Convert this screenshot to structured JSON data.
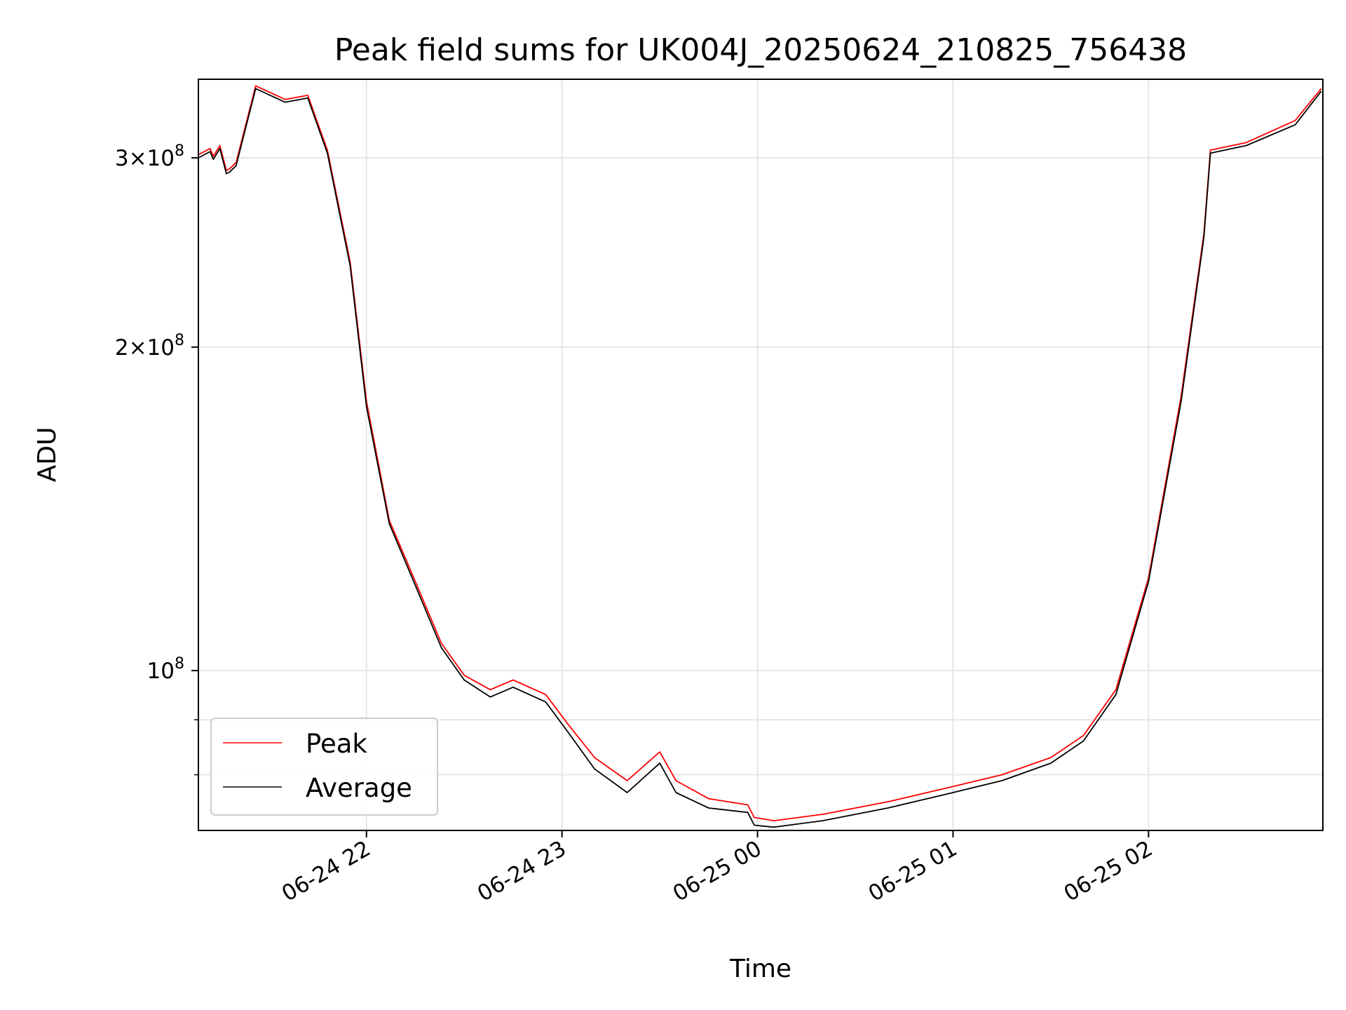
{
  "chart_data": {
    "type": "line",
    "title": "Peak field sums for UK004J_20250624_210825_756438",
    "xlabel": "Time",
    "ylabel": "ADU",
    "yscale": "log",
    "xlim": [
      "2025-06-24 21:08:25",
      "2025-06-25 02:53:30"
    ],
    "ylim": [
      71000000,
      355000000
    ],
    "grid": true,
    "legend_position": "lower-left",
    "x_tick_labels": [
      {
        "value": "2025-06-24 22:00",
        "label": "06-24 22"
      },
      {
        "value": "2025-06-24 23:00",
        "label": "06-24 23"
      },
      {
        "value": "2025-06-25 00:00",
        "label": "06-25 00"
      },
      {
        "value": "2025-06-25 01:00",
        "label": "06-25 01"
      },
      {
        "value": "2025-06-25 02:00",
        "label": "06-25 02"
      }
    ],
    "y_tick_labels": [
      {
        "value": 100000000,
        "mantissa": "",
        "exponent": "8"
      },
      {
        "value": 200000000,
        "mantissa": "2",
        "exponent": "8"
      },
      {
        "value": 300000000,
        "mantissa": "3",
        "exponent": "8"
      }
    ],
    "y_minor_ticks": [
      80000000,
      90000000
    ],
    "x": [
      "2025-06-24 21:08:25",
      "2025-06-24 21:12:00",
      "2025-06-24 21:13:00",
      "2025-06-24 21:15:00",
      "2025-06-24 21:17:00",
      "2025-06-24 21:18:00",
      "2025-06-24 21:20:00",
      "2025-06-24 21:26:00",
      "2025-06-24 21:35:00",
      "2025-06-24 21:42:00",
      "2025-06-24 21:48:00",
      "2025-06-24 21:55:00",
      "2025-06-24 22:00:00",
      "2025-06-24 22:07:00",
      "2025-06-24 22:15:00",
      "2025-06-24 22:23:00",
      "2025-06-24 22:30:00",
      "2025-06-24 22:38:00",
      "2025-06-24 22:45:00",
      "2025-06-24 22:55:00",
      "2025-06-24 23:02:00",
      "2025-06-24 23:10:00",
      "2025-06-24 23:20:00",
      "2025-06-24 23:30:00",
      "2025-06-24 23:35:00",
      "2025-06-24 23:45:00",
      "2025-06-24 23:57:00",
      "2025-06-24 23:59:00",
      "2025-06-25 00:05:00",
      "2025-06-25 00:20:00",
      "2025-06-25 00:40:00",
      "2025-06-25 01:00:00",
      "2025-06-25 01:15:00",
      "2025-06-25 01:30:00",
      "2025-06-25 01:40:00",
      "2025-06-25 01:50:00",
      "2025-06-25 02:00:00",
      "2025-06-25 02:10:00",
      "2025-06-25 02:17:00",
      "2025-06-25 02:19:00",
      "2025-06-25 02:30:00",
      "2025-06-25 02:45:00",
      "2025-06-25 02:53:00"
    ],
    "series": [
      {
        "name": "Peak",
        "color": "#ff0000",
        "values": [
          302000000,
          306000000,
          301000000,
          308000000,
          292000000,
          293000000,
          297000000,
          350000000,
          340000000,
          343000000,
          305000000,
          240000000,
          178000000,
          138000000,
          121000000,
          106000000,
          99000000,
          96000000,
          98000000,
          95000000,
          89000000,
          83000000,
          79000000,
          84000000,
          79000000,
          76000000,
          75000000,
          73000000,
          72500000,
          73500000,
          75500000,
          78000000,
          80000000,
          83000000,
          87000000,
          96000000,
          122000000,
          180000000,
          255000000,
          305000000,
          310000000,
          325000000,
          348000000
        ]
      },
      {
        "name": "Average",
        "color": "#000000",
        "values": [
          300000000,
          304000000,
          299000000,
          306000000,
          290000000,
          291000000,
          295000000,
          348000000,
          338000000,
          341000000,
          303000000,
          238000000,
          176000000,
          137000000,
          120000000,
          105000000,
          98000000,
          94500000,
          96500000,
          93500000,
          87500000,
          81000000,
          77000000,
          82000000,
          77000000,
          74500000,
          73800000,
          71800000,
          71500000,
          72500000,
          74500000,
          77000000,
          79000000,
          82000000,
          86000000,
          95000000,
          121000000,
          178000000,
          253000000,
          303000000,
          308000000,
          322000000,
          346000000
        ]
      }
    ]
  }
}
